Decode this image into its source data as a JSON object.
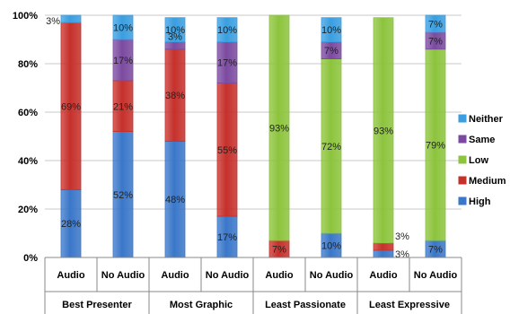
{
  "chart_data": {
    "type": "bar",
    "stacked": true,
    "percent": true,
    "ylim": [
      0,
      100
    ],
    "yticks": [
      "0%",
      "20%",
      "40%",
      "60%",
      "80%",
      "100%"
    ],
    "grid": true,
    "legend_position": "right",
    "categories": [
      "Audio",
      "No Audio",
      "Audio",
      "No Audio",
      "Audio",
      "No Audio",
      "Audio",
      "No Audio"
    ],
    "groups": [
      {
        "label": "Best Presenter",
        "start": 0,
        "count": 2
      },
      {
        "label": "Most Graphic",
        "start": 2,
        "count": 2
      },
      {
        "label": "Least Passionate",
        "start": 4,
        "count": 2
      },
      {
        "label": "Least Expressive",
        "start": 6,
        "count": 2
      }
    ],
    "series": [
      {
        "name": "High",
        "color": "#3a77c9",
        "values": [
          28,
          52,
          48,
          17,
          0,
          10,
          3,
          7
        ],
        "labels": [
          "28%",
          "52%",
          "48%",
          "17%",
          "",
          "10%",
          "3%",
          "7%"
        ]
      },
      {
        "name": "Medium",
        "color": "#c6302b",
        "values": [
          69,
          21,
          38,
          55,
          7,
          0,
          3,
          0
        ],
        "labels": [
          "69%",
          "21%",
          "38%",
          "55%",
          "7%",
          "",
          "3%",
          ""
        ]
      },
      {
        "name": "Low",
        "color": "#8cc43c",
        "values": [
          0,
          0,
          0,
          0,
          93,
          72,
          93,
          79
        ],
        "labels": [
          "",
          "",
          "",
          "",
          "93%",
          "72%",
          "93%",
          "79%"
        ]
      },
      {
        "name": "Same",
        "color": "#7b4aa0",
        "values": [
          0,
          17,
          3,
          17,
          0,
          7,
          0,
          7
        ],
        "labels": [
          "",
          "17%",
          "3%",
          "17%",
          "",
          "7%",
          "",
          "7%"
        ]
      },
      {
        "name": "Neither",
        "color": "#3a9ee0",
        "values": [
          3,
          10,
          10,
          10,
          0,
          10,
          0,
          7
        ],
        "labels": [
          "3%",
          "10%",
          "10%",
          "10%",
          "",
          "10%",
          "",
          "7%"
        ]
      }
    ],
    "legend_order": [
      "Neither",
      "Same",
      "Low",
      "Medium",
      "High"
    ]
  }
}
